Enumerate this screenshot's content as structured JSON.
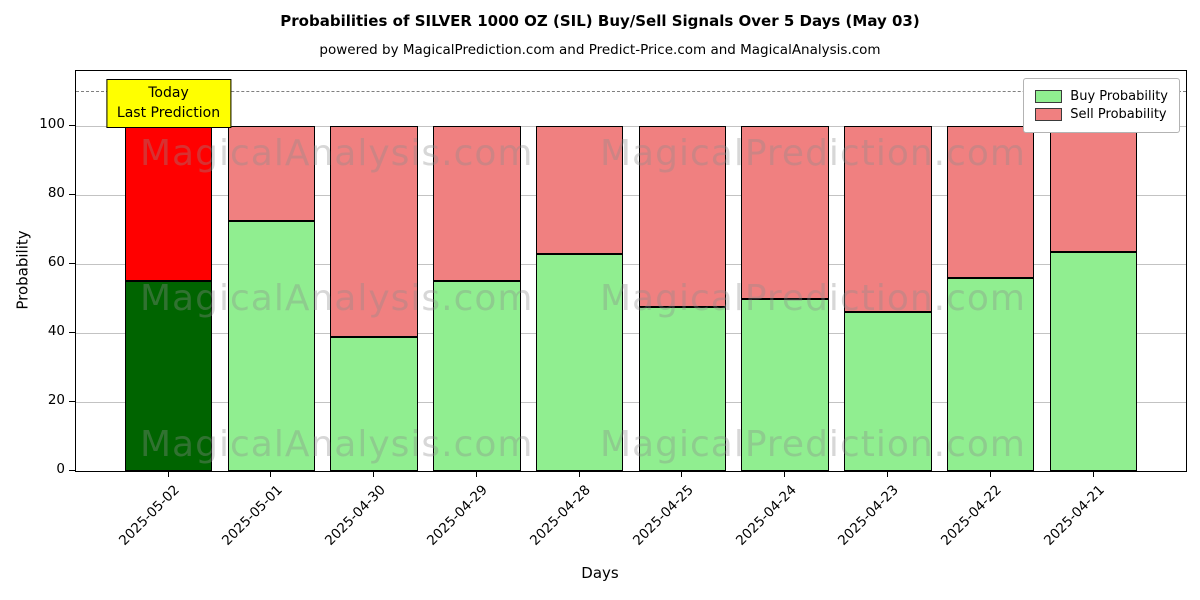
{
  "chart_data": {
    "type": "bar",
    "stacked": true,
    "title": "Probabilities of SILVER 1000 OZ (SIL) Buy/Sell Signals Over 5 Days (May 03)",
    "subtitle": "powered by MagicalPrediction.com and Predict-Price.com and MagicalAnalysis.com",
    "xlabel": "Days",
    "ylabel": "Probability",
    "categories": [
      "2025-05-02",
      "2025-05-01",
      "2025-04-30",
      "2025-04-29",
      "2025-04-28",
      "2025-04-25",
      "2025-04-24",
      "2025-04-23",
      "2025-04-22",
      "2025-04-21"
    ],
    "series": [
      {
        "name": "Buy Probability",
        "values": [
          55,
          72.5,
          39,
          55,
          63,
          47.5,
          50,
          46,
          56,
          63.5
        ]
      },
      {
        "name": "Sell Probability",
        "values": [
          45,
          27.5,
          61,
          45,
          37,
          52.5,
          50,
          54,
          44,
          36.5
        ]
      }
    ],
    "yticks": [
      0,
      20,
      40,
      60,
      80,
      100
    ],
    "ylim": [
      0,
      116
    ],
    "dashed_line_y": 110,
    "grid": "horizontal",
    "legend_position": "upper right",
    "colors": {
      "buy": "#90ee90",
      "sell": "#f08080",
      "today_buy": "#006400",
      "today_sell": "#ff0000",
      "annotation_bg": "#ffff00",
      "gridline": "#c3c3c3"
    },
    "annotation": {
      "line1": "Today",
      "line2": "Last Prediction"
    },
    "watermarks": [
      "MagicalAnalysis.com",
      "MagicalPrediction.com"
    ]
  }
}
